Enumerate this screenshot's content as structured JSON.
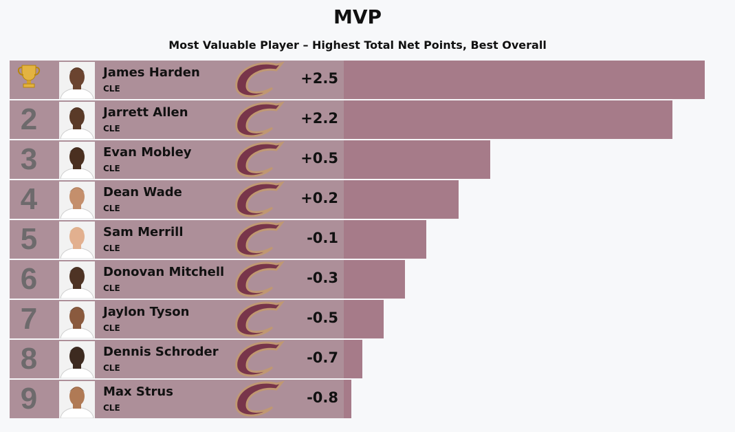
{
  "chart_data": {
    "type": "bar",
    "orientation": "horizontal",
    "title": "MVP",
    "subtitle": "Most Valuable Player – Highest Total Net Points, Best Overall",
    "colors": {
      "bar": "#a67b89",
      "cell": "#ad8f99",
      "logo_wine": "#6f263d",
      "logo_gold": "#c49a6c"
    },
    "rows": [
      {
        "rank": "",
        "rank_icon": "trophy-icon",
        "name": "James Harden",
        "team": "CLE",
        "label": "+2.5",
        "value": 2.5
      },
      {
        "rank": "2",
        "name": "Jarrett Allen",
        "team": "CLE",
        "label": "+2.2",
        "value": 2.2
      },
      {
        "rank": "3",
        "name": "Evan Mobley",
        "team": "CLE",
        "label": "+0.5",
        "value": 0.5
      },
      {
        "rank": "4",
        "name": "Dean Wade",
        "team": "CLE",
        "label": "+0.2",
        "value": 0.2
      },
      {
        "rank": "5",
        "name": "Sam Merrill",
        "team": "CLE",
        "label": "-0.1",
        "value": -0.1
      },
      {
        "rank": "6",
        "name": "Donovan Mitchell",
        "team": "CLE",
        "label": "-0.3",
        "value": -0.3
      },
      {
        "rank": "7",
        "name": "Jaylon Tyson",
        "team": "CLE",
        "label": "-0.5",
        "value": -0.5
      },
      {
        "rank": "8",
        "name": "Dennis Schroder",
        "team": "CLE",
        "label": "-0.7",
        "value": -0.7
      },
      {
        "rank": "9",
        "name": "Max Strus",
        "team": "CLE",
        "label": "-0.8",
        "value": -0.8
      }
    ]
  }
}
